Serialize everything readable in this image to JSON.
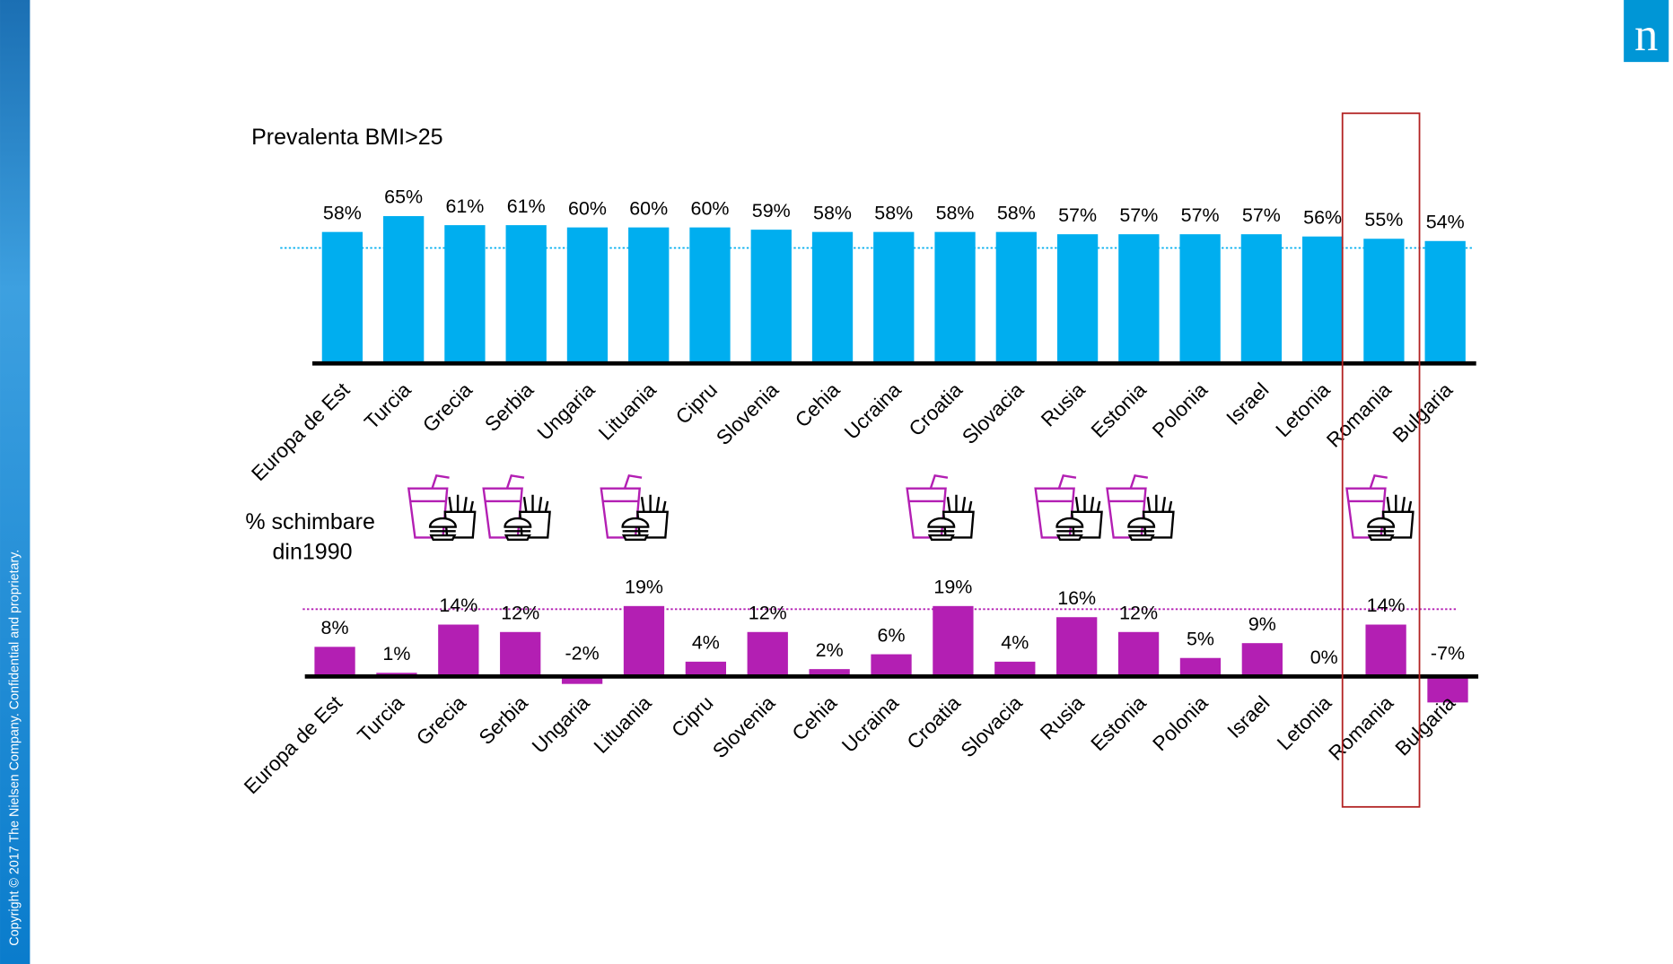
{
  "chart_data": [
    {
      "type": "bar",
      "title": "Prevalenta BMI>25",
      "categories": [
        "Europa de Est",
        "Turcia",
        "Grecia",
        "Serbia",
        "Ungaria",
        "Lituania",
        "Cipru",
        "Slovenia",
        "Cehia",
        "Ucraina",
        "Croatia",
        "Slovacia",
        "Rusia",
        "Estonia",
        "Polonia",
        "Israel",
        "Letonia",
        "Romania",
        "Bulgaria"
      ],
      "values": [
        58,
        65,
        61,
        61,
        60,
        60,
        60,
        59,
        58,
        58,
        58,
        58,
        57,
        57,
        57,
        57,
        56,
        55,
        54
      ],
      "value_labels": [
        "58%",
        "65%",
        "61%",
        "61%",
        "60%",
        "60%",
        "60%",
        "59%",
        "58%",
        "58%",
        "58%",
        "58%",
        "57%",
        "57%",
        "57%",
        "57%",
        "56%",
        "55%",
        "54%"
      ],
      "color": "#00aeef"
    },
    {
      "type": "bar",
      "title": [
        "% schimbare",
        "din1990"
      ],
      "categories": [
        "Europa de Est",
        "Turcia",
        "Grecia",
        "Serbia",
        "Ungaria",
        "Lituania",
        "Cipru",
        "Slovenia",
        "Cehia",
        "Ucraina",
        "Croatia",
        "Slovacia",
        "Rusia",
        "Estonia",
        "Polonia",
        "Israel",
        "Letonia",
        "Romania",
        "Bulgaria"
      ],
      "values": [
        8,
        1,
        14,
        12,
        -2,
        19,
        4,
        12,
        2,
        6,
        19,
        4,
        16,
        12,
        5,
        9,
        0,
        14,
        -7
      ],
      "value_labels": [
        "8%",
        "1%",
        "14%",
        "12%",
        "-2%",
        "19%",
        "4%",
        "12%",
        "2%",
        "6%",
        "19%",
        "4%",
        "16%",
        "12%",
        "5%",
        "9%",
        "0%",
        "14%",
        "-7%"
      ],
      "color": "#b31fb3"
    }
  ],
  "copyright": "Copyright © 2017 The Nielsen Company. Confidential and proprietary.",
  "logo": "n"
}
